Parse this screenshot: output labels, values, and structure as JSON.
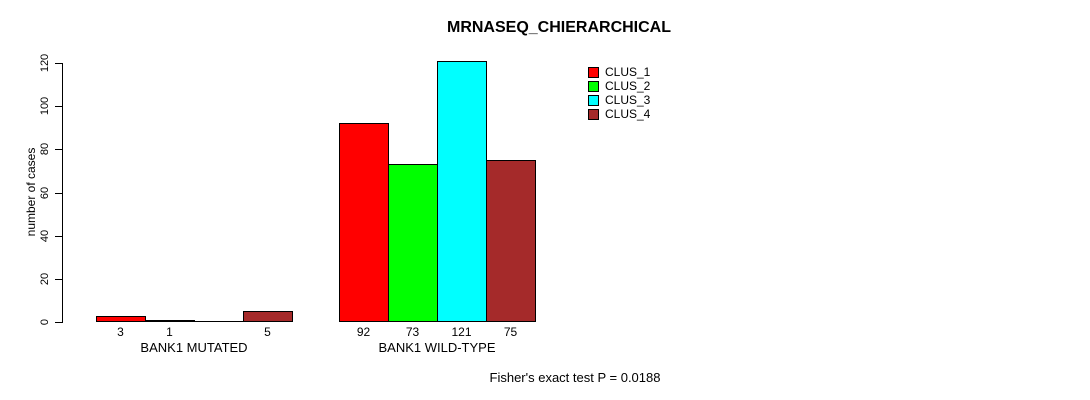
{
  "chart_data": {
    "type": "bar",
    "title": "MRNASEQ_CHIERARCHICAL",
    "ylabel": "number of cases",
    "xlabel": "",
    "ylim": [
      0,
      120
    ],
    "yticks": [
      "0",
      "20",
      "40",
      "60",
      "80",
      "100",
      "120"
    ],
    "grid": false,
    "legend_position": "top-right",
    "background_color": "#FFFFFF",
    "axis_color": "#000000",
    "groups": [
      {
        "label": "BANK1 MUTATED",
        "bar_labels": [
          "3",
          "1",
          "",
          "5"
        ]
      },
      {
        "label": "BANK1 WILD-TYPE",
        "bar_labels": [
          "92",
          "73",
          "121",
          "75"
        ]
      }
    ],
    "series": [
      {
        "name": "CLUS_1",
        "color": "#FF0000",
        "values": [
          3,
          92
        ]
      },
      {
        "name": "CLUS_2",
        "color": "#00FF00",
        "values": [
          1,
          73
        ]
      },
      {
        "name": "CLUS_3",
        "color": "#00FFFF",
        "values": [
          0,
          121
        ]
      },
      {
        "name": "CLUS_4",
        "color": "#A52A2A",
        "values": [
          5,
          75
        ]
      }
    ],
    "annotation": "Fisher's exact test P = 0.0188"
  }
}
